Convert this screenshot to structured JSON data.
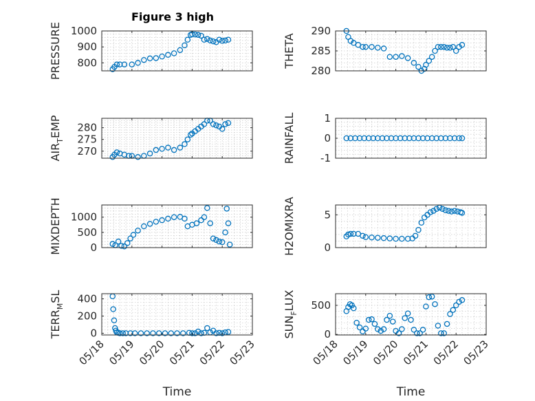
{
  "figure_title": "Figure 3 high",
  "colors": {
    "marker": "#0072BD",
    "axes": "#262626",
    "grid": "#bdbdbd"
  },
  "chart_data": [
    {
      "type": "scatter",
      "id": "pressure",
      "title": "Figure 3 high",
      "ylabel": "PRESSURE",
      "ylim": [
        750,
        1000
      ],
      "yticks": [
        800,
        900,
        1000
      ],
      "xlim": [
        "05/18",
        "05/23"
      ],
      "xticks": [
        "05/18",
        "05/19",
        "05/20",
        "05/21",
        "05/22",
        "05/23"
      ],
      "xlabel": "",
      "grid": true,
      "x": [
        0.36,
        0.42,
        0.5,
        0.6,
        0.75,
        1.0,
        1.2,
        1.4,
        1.6,
        1.8,
        2.0,
        2.2,
        2.4,
        2.6,
        2.75,
        2.85,
        2.95,
        3.0,
        3.1,
        3.2,
        3.3,
        3.4,
        3.5,
        3.6,
        3.7,
        3.8,
        3.9,
        4.0,
        4.1,
        4.2
      ],
      "y": [
        760,
        775,
        790,
        790,
        790,
        790,
        800,
        818,
        828,
        830,
        840,
        850,
        860,
        880,
        910,
        945,
        975,
        980,
        978,
        975,
        970,
        945,
        950,
        940,
        935,
        930,
        945,
        938,
        940,
        945
      ]
    },
    {
      "type": "scatter",
      "id": "theta",
      "ylabel": "THETA",
      "ylim": [
        280,
        290
      ],
      "yticks": [
        280,
        285,
        290
      ],
      "xlim": [
        "05/18",
        "05/23"
      ],
      "xticks": [
        "05/18",
        "05/19",
        "05/20",
        "05/21",
        "05/22",
        "05/23"
      ],
      "xlabel": "",
      "grid": true,
      "x": [
        0.36,
        0.42,
        0.5,
        0.6,
        0.75,
        0.9,
        1.0,
        1.2,
        1.4,
        1.6,
        1.8,
        2.0,
        2.2,
        2.4,
        2.6,
        2.75,
        2.85,
        2.95,
        3.0,
        3.1,
        3.2,
        3.3,
        3.4,
        3.5,
        3.6,
        3.7,
        3.8,
        3.9,
        4.0,
        4.1,
        4.2
      ],
      "y": [
        290,
        288.5,
        287.5,
        287,
        286.5,
        286,
        286,
        286,
        285.8,
        285.6,
        283.5,
        283.5,
        283.7,
        283.2,
        282,
        281,
        280,
        280.5,
        281.5,
        282.5,
        283.5,
        285,
        286,
        286,
        286,
        285.8,
        285.8,
        286,
        285,
        286,
        286.5
      ]
    },
    {
      "type": "scatter",
      "id": "air_temp",
      "ylabel": "AIR_TEMP",
      "ylim": [
        267,
        284
      ],
      "yticks": [
        270,
        275,
        280
      ],
      "xlim": [
        "05/18",
        "05/23"
      ],
      "xticks": [
        "05/18",
        "05/19",
        "05/20",
        "05/21",
        "05/22",
        "05/23"
      ],
      "xlabel": "",
      "grid": true,
      "x": [
        0.36,
        0.42,
        0.5,
        0.6,
        0.75,
        0.9,
        1.0,
        1.2,
        1.4,
        1.6,
        1.8,
        2.0,
        2.2,
        2.4,
        2.6,
        2.75,
        2.85,
        2.95,
        3.0,
        3.1,
        3.2,
        3.3,
        3.4,
        3.5,
        3.6,
        3.7,
        3.8,
        3.9,
        4.0,
        4.1,
        4.2
      ],
      "y": [
        267.5,
        268.5,
        269.5,
        269,
        268.5,
        268,
        268,
        267.5,
        268,
        269,
        270.5,
        271,
        271.5,
        270.5,
        271.5,
        273,
        275,
        277,
        277.5,
        278.5,
        279.5,
        280.5,
        281.5,
        283,
        283,
        281.5,
        281,
        280.5,
        279.5,
        281.5,
        282
      ]
    },
    {
      "type": "scatter",
      "id": "rainfall",
      "ylabel": "RAINFALL",
      "ylim": [
        -1,
        1
      ],
      "yticks": [
        -1,
        0,
        1
      ],
      "xlim": [
        "05/18",
        "05/23"
      ],
      "xticks": [
        "05/18",
        "05/19",
        "05/20",
        "05/21",
        "05/22",
        "05/23"
      ],
      "xlabel": "",
      "grid": true,
      "x": [
        0.36,
        0.5,
        0.65,
        0.8,
        0.95,
        1.1,
        1.25,
        1.4,
        1.55,
        1.7,
        1.85,
        2.0,
        2.15,
        2.3,
        2.45,
        2.6,
        2.75,
        2.9,
        3.05,
        3.2,
        3.35,
        3.5,
        3.65,
        3.8,
        3.95,
        4.1,
        4.2
      ],
      "y": [
        0,
        0,
        0,
        0,
        0,
        0,
        0,
        0,
        0,
        0,
        0,
        0,
        0,
        0,
        0,
        0,
        0,
        0,
        0,
        0,
        0,
        0,
        0,
        0,
        0,
        0,
        0
      ]
    },
    {
      "type": "scatter",
      "id": "mixdepth",
      "ylabel": "MIXDEPTH",
      "ylim": [
        0,
        1400
      ],
      "yticks": [
        0,
        500,
        1000
      ],
      "xlim": [
        "05/18",
        "05/23"
      ],
      "xticks": [
        "05/18",
        "05/19",
        "05/20",
        "05/21",
        "05/22",
        "05/23"
      ],
      "xlabel": "",
      "grid": true,
      "x": [
        0.36,
        0.45,
        0.55,
        0.65,
        0.75,
        0.85,
        0.95,
        1.05,
        1.2,
        1.4,
        1.6,
        1.8,
        2.0,
        2.2,
        2.4,
        2.6,
        2.75,
        2.85,
        3.0,
        3.15,
        3.3,
        3.4,
        3.5,
        3.6,
        3.7,
        3.8,
        3.9,
        4.0,
        4.1,
        4.15,
        4.2,
        4.25
      ],
      "y": [
        120,
        80,
        200,
        60,
        40,
        150,
        300,
        420,
        560,
        700,
        780,
        850,
        900,
        950,
        1000,
        1010,
        950,
        700,
        750,
        800,
        900,
        1000,
        1300,
        800,
        300,
        250,
        200,
        180,
        500,
        1280,
        800,
        100
      ]
    },
    {
      "type": "scatter",
      "id": "h2omixra",
      "ylabel": "H2OMIXRA",
      "ylim": [
        0,
        6.5
      ],
      "yticks": [
        0,
        5
      ],
      "xlim": [
        "05/18",
        "05/23"
      ],
      "xticks": [
        "05/18",
        "05/19",
        "05/20",
        "05/21",
        "05/22",
        "05/23"
      ],
      "xlabel": "",
      "grid": true,
      "x": [
        0.36,
        0.42,
        0.5,
        0.6,
        0.75,
        0.9,
        1.0,
        1.2,
        1.4,
        1.6,
        1.8,
        2.0,
        2.2,
        2.4,
        2.55,
        2.65,
        2.75,
        2.85,
        2.95,
        3.05,
        3.15,
        3.25,
        3.35,
        3.45,
        3.55,
        3.65,
        3.75,
        3.85,
        3.95,
        4.05,
        4.15,
        4.2
      ],
      "y": [
        1.7,
        2.0,
        2.1,
        2.1,
        2.1,
        1.8,
        1.6,
        1.55,
        1.5,
        1.45,
        1.4,
        1.35,
        1.35,
        1.35,
        1.4,
        1.8,
        2.7,
        3.8,
        4.6,
        5.0,
        5.4,
        5.6,
        5.9,
        6.1,
        5.9,
        5.7,
        5.6,
        5.5,
        5.6,
        5.5,
        5.4,
        5.3
      ]
    },
    {
      "type": "scatter",
      "id": "terr_msl",
      "ylabel": "TERR_MSL",
      "ylim": [
        -20,
        460
      ],
      "yticks": [
        0,
        200,
        400
      ],
      "xlim": [
        "05/18",
        "05/23"
      ],
      "xticks": [
        "05/18",
        "05/19",
        "05/20",
        "05/21",
        "05/22",
        "05/23"
      ],
      "xlabel": "Time",
      "grid": true,
      "x": [
        0.36,
        0.38,
        0.41,
        0.44,
        0.47,
        0.5,
        0.55,
        0.6,
        0.7,
        0.8,
        0.95,
        1.1,
        1.3,
        1.5,
        1.7,
        1.9,
        2.1,
        2.3,
        2.5,
        2.7,
        2.9,
        3.0,
        3.1,
        3.2,
        3.3,
        3.4,
        3.5,
        3.6,
        3.7,
        3.8,
        3.9,
        4.0,
        4.1,
        4.2
      ],
      "y": [
        430,
        280,
        150,
        60,
        30,
        10,
        5,
        0,
        0,
        0,
        0,
        0,
        0,
        0,
        0,
        0,
        0,
        0,
        0,
        0,
        5,
        0,
        0,
        20,
        0,
        5,
        60,
        10,
        30,
        0,
        5,
        0,
        10,
        15
      ]
    },
    {
      "type": "scatter",
      "id": "sun_flux",
      "ylabel": "SUN_FLUX",
      "ylim": [
        -10,
        700
      ],
      "yticks": [
        0,
        500
      ],
      "xlim": [
        "05/18",
        "05/23"
      ],
      "xticks": [
        "05/18",
        "05/19",
        "05/20",
        "05/21",
        "05/22",
        "05/23"
      ],
      "xlabel": "Time",
      "grid": true,
      "x": [
        0.36,
        0.42,
        0.48,
        0.54,
        0.6,
        0.7,
        0.8,
        0.9,
        1.0,
        1.1,
        1.2,
        1.3,
        1.4,
        1.5,
        1.6,
        1.7,
        1.8,
        1.9,
        2.0,
        2.1,
        2.2,
        2.3,
        2.4,
        2.5,
        2.6,
        2.7,
        2.8,
        2.9,
        3.0,
        3.1,
        3.2,
        3.3,
        3.4,
        3.5,
        3.6,
        3.7,
        3.8,
        3.9,
        4.0,
        4.1,
        4.2
      ],
      "y": [
        400,
        470,
        520,
        500,
        450,
        200,
        120,
        50,
        100,
        250,
        260,
        180,
        90,
        60,
        90,
        250,
        320,
        220,
        60,
        20,
        90,
        280,
        360,
        250,
        80,
        20,
        20,
        80,
        480,
        640,
        650,
        520,
        150,
        20,
        20,
        180,
        350,
        420,
        500,
        560,
        590
      ]
    }
  ],
  "left_column_suffixes": {
    "air_temp": "AIR_TEMP",
    "terr_msl": "TERR_MSL",
    "sun_flux": "SUN_FLUX"
  }
}
